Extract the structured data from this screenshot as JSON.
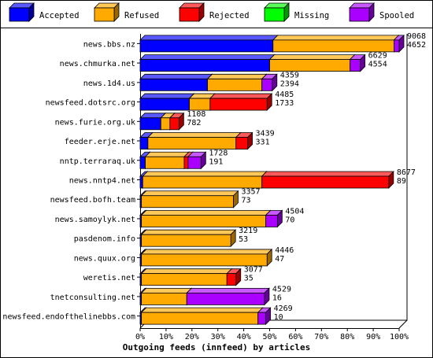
{
  "chart_data": {
    "type": "bar",
    "title": "Outgoing feeds (innfeed) by articles",
    "stacked": true,
    "orientation": "horizontal",
    "xlim": [
      0,
      100
    ],
    "x_ticks": [
      "0%",
      "10%",
      "20%",
      "30%",
      "40%",
      "50%",
      "60%",
      "70%",
      "80%",
      "90%",
      "100%"
    ],
    "legend_position": "top",
    "series": [
      {
        "name": "Accepted",
        "color": "#0000ff"
      },
      {
        "name": "Refused",
        "color": "#ffaa00"
      },
      {
        "name": "Rejected",
        "color": "#ff0000"
      },
      {
        "name": "Missing",
        "color": "#00ff00"
      },
      {
        "name": "Spooled",
        "color": "#aa00ff"
      }
    ],
    "rows": [
      {
        "label": "news.bbs.nz",
        "total": "9068",
        "second": "4652",
        "pct": [
          51.3,
          46.7,
          0,
          0,
          2.0
        ]
      },
      {
        "label": "news.chmurka.net",
        "total": "6629",
        "second": "4554",
        "pct": [
          50.0,
          31.0,
          0,
          0,
          4.0
        ]
      },
      {
        "label": "news.1d4.us",
        "total": "4359",
        "second": "2394",
        "pct": [
          26.0,
          21.0,
          0,
          0,
          4.0
        ]
      },
      {
        "label": "newsfeed.dotsrc.org",
        "total": "4485",
        "second": "1733",
        "pct": [
          19.0,
          8.0,
          22.0,
          0,
          0
        ]
      },
      {
        "label": "news.furie.org.uk",
        "total": "1108",
        "second": "782",
        "pct": [
          8.0,
          3.5,
          3.5,
          0,
          0
        ]
      },
      {
        "label": "feeder.erje.net",
        "total": "3439",
        "second": "331",
        "pct": [
          3.0,
          34.0,
          4.5,
          0,
          0
        ]
      },
      {
        "label": "nntp.terraraq.uk",
        "total": "1728",
        "second": "191",
        "pct": [
          2.0,
          15.0,
          1.5,
          0,
          5.0
        ]
      },
      {
        "label": "news.nntp4.net",
        "total": "8677",
        "second": "89",
        "pct": [
          1.0,
          46.0,
          49.0,
          0,
          0
        ]
      },
      {
        "label": "newsfeed.bofh.team",
        "total": "3357",
        "second": "73",
        "pct": [
          0.5,
          35.5,
          0,
          0,
          0
        ]
      },
      {
        "label": "news.samoylyk.net",
        "total": "4504",
        "second": "70",
        "pct": [
          0.5,
          48.0,
          0,
          0,
          4.5
        ]
      },
      {
        "label": "pasdenom.info",
        "total": "3219",
        "second": "53",
        "pct": [
          0.5,
          34.5,
          0,
          0,
          0
        ]
      },
      {
        "label": "news.quux.org",
        "total": "4446",
        "second": "47",
        "pct": [
          0.5,
          48.5,
          0,
          0,
          0
        ]
      },
      {
        "label": "weretis.net",
        "total": "3077",
        "second": "35",
        "pct": [
          0.5,
          33.0,
          3.5,
          0,
          0
        ]
      },
      {
        "label": "tnetconsulting.net",
        "total": "4529",
        "second": "16",
        "pct": [
          0.5,
          17.5,
          0,
          0,
          30.0
        ]
      },
      {
        "label": "newsfeed.endofthelinebbs.com",
        "total": "4269",
        "second": "10",
        "pct": [
          0.5,
          45.0,
          0,
          0,
          3.0
        ]
      }
    ]
  }
}
